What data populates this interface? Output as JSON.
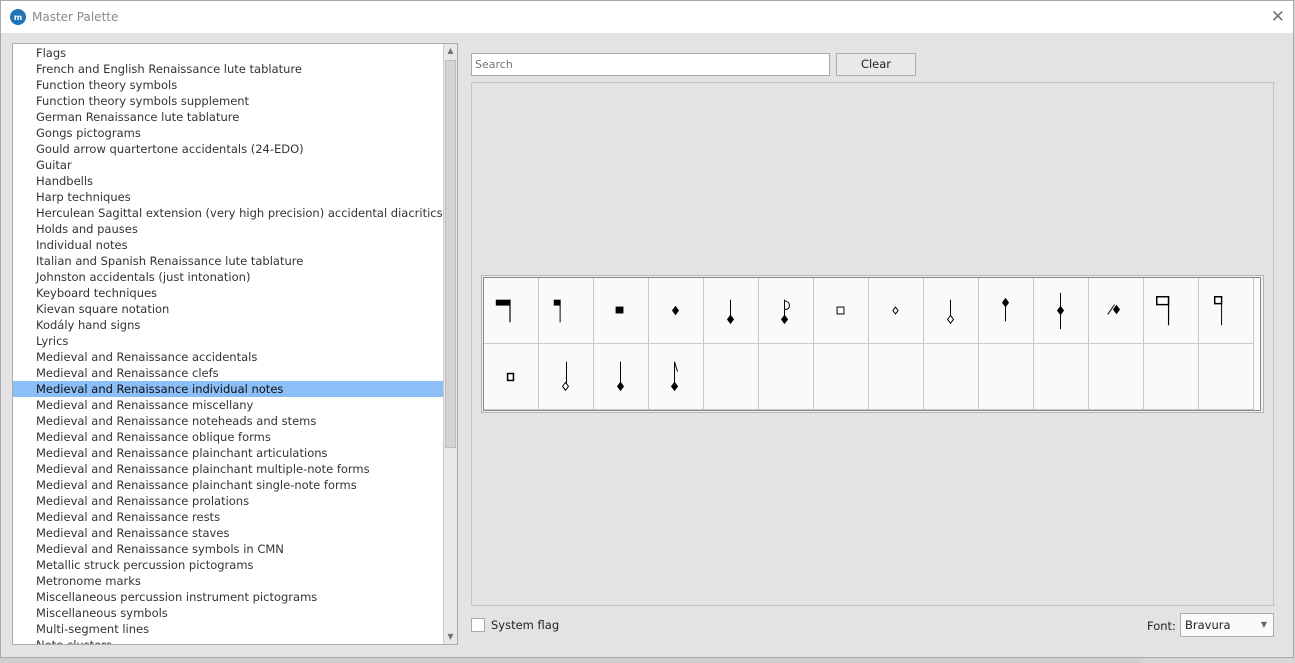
{
  "window": {
    "title": "Master Palette",
    "close_icon": "close-icon"
  },
  "categories": {
    "selected_index": 21,
    "items": [
      "Flags",
      "French and English Renaissance lute tablature",
      "Function theory symbols",
      "Function theory symbols supplement",
      "German Renaissance lute tablature",
      "Gongs pictograms",
      "Gould arrow quartertone accidentals (24-EDO)",
      "Guitar",
      "Handbells",
      "Harp techniques",
      "Herculean Sagittal extension (very high precision) accidental diacritics",
      "Holds and pauses",
      "Individual notes",
      "Italian and Spanish Renaissance lute tablature",
      "Johnston accidentals (just intonation)",
      "Keyboard techniques",
      "Kievan square notation",
      "Kodály hand signs",
      "Lyrics",
      "Medieval and Renaissance accidentals",
      "Medieval and Renaissance clefs",
      "Medieval and Renaissance individual notes",
      "Medieval and Renaissance miscellany",
      "Medieval and Renaissance noteheads and stems",
      "Medieval and Renaissance oblique forms",
      "Medieval and Renaissance plainchant articulations",
      "Medieval and Renaissance plainchant multiple-note forms",
      "Medieval and Renaissance plainchant single-note forms",
      "Medieval and Renaissance prolations",
      "Medieval and Renaissance rests",
      "Medieval and Renaissance staves",
      "Medieval and Renaissance symbols in CMN",
      "Metallic struck percussion pictograms",
      "Metronome marks",
      "Miscellaneous percussion instrument pictograms",
      "Miscellaneous symbols",
      "Multi-segment lines",
      "Note clusters"
    ]
  },
  "search": {
    "placeholder": "Search",
    "value": ""
  },
  "clear_label": "Clear",
  "glyphs": [
    "maxima-black",
    "longa-black",
    "brevis-black",
    "semibrevis-black",
    "minima-black",
    "semiminima-black-flagged",
    "brevis-void",
    "semibrevis-void",
    "minima-void",
    "semibrevis-black-stem-up",
    "semibrevis-black-stem-both",
    "semibrevis-oblique-stem",
    "longa-void-double",
    "longa-void",
    "brevis-void-small",
    "minima-void-tall",
    "semiminima-black-tall",
    "fusa-black-flagged"
  ],
  "system_flag": {
    "label": "System flag",
    "checked": false
  },
  "font": {
    "label": "Font:",
    "value": "Bravura"
  },
  "colors": {
    "selection": "#8cbef8",
    "app_icon": "#1f73b7"
  }
}
